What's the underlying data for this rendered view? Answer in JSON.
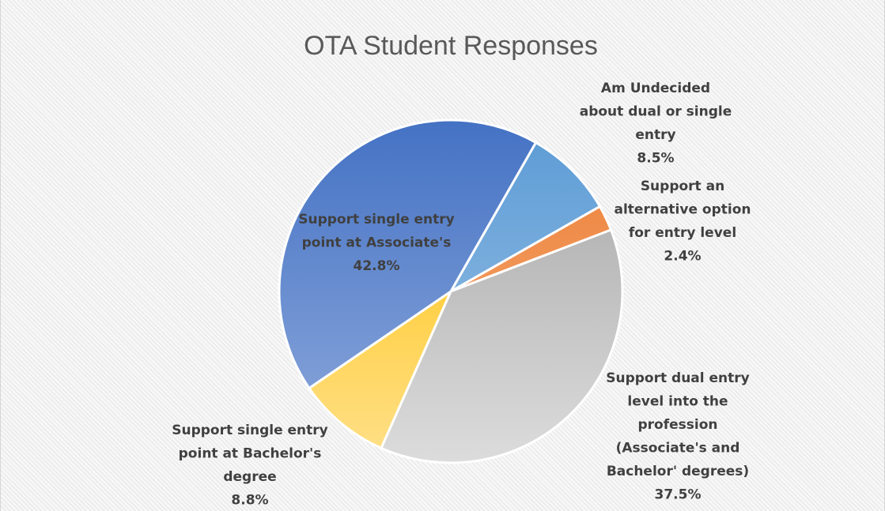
{
  "chart_data": {
    "type": "pie",
    "title": "OTA Student Responses",
    "slices": [
      {
        "name": "Am Undecided about dual or single entry",
        "value": 8.5,
        "percent_label": "8.5%",
        "label_lines": [
          "Am Undecided",
          "about dual or single",
          "entry",
          "8.5%"
        ],
        "color_light": "#9dc3e6",
        "color_dark": "#5b9bd5"
      },
      {
        "name": "Support an alternative option for entry level",
        "value": 2.4,
        "percent_label": "2.4%",
        "label_lines": [
          "Support an",
          "alternative option",
          "for entry level",
          "2.4%"
        ],
        "color_light": "#f4b183",
        "color_dark": "#ed7d31"
      },
      {
        "name": "Support dual entry level into the profession (Associate's and Bachelor' degrees)",
        "value": 37.5,
        "percent_label": "37.5%",
        "label_lines": [
          "Support dual entry",
          "level into the",
          "profession",
          "(Associate's and",
          "Bachelor' degrees)",
          "37.5%"
        ],
        "color_light": "#dcdcdc",
        "color_dark": "#a5a5a5"
      },
      {
        "name": "Support single entry point at Bachelor's degree",
        "value": 8.8,
        "percent_label": "8.8%",
        "label_lines": [
          "Support single entry",
          "point at Bachelor's",
          "degree",
          "8.8%"
        ],
        "color_light": "#ffe08a",
        "color_dark": "#ffc000"
      },
      {
        "name": "Support single entry point at Associate's",
        "value": 42.8,
        "percent_label": "42.8%",
        "label_lines": [
          "Support single entry",
          "point at Associate's",
          "42.8%"
        ],
        "color_light": "#8faadc",
        "color_dark": "#4472c4"
      }
    ],
    "legend": "none",
    "data_labels": "category name and percentage"
  }
}
